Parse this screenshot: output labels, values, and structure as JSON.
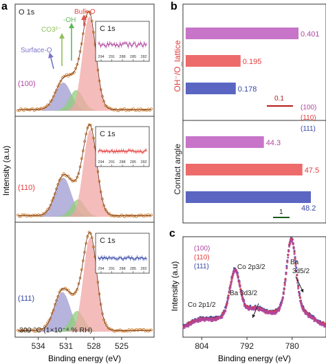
{
  "colors": {
    "c100": "#b0479f",
    "c110": "#e23b3b",
    "c111": "#3346a6",
    "purple_fill": "#9e9ad2",
    "green_fill": "#8fcf7a",
    "red_fill": "#f2a5a5",
    "bar100": "#c774c9",
    "bar110": "#ee6b6b",
    "bar111": "#5a66c2",
    "data_orange": "#c8792a",
    "scale_red": "#b81818",
    "scale_green": "#1a5a1a"
  },
  "panel_a": {
    "letter": "a",
    "ylabel": "Intensity (a.u)",
    "xlabel": "Binding energy (eV)",
    "xticks": [
      "534",
      "531",
      "528",
      "525"
    ],
    "o1s_label": "O 1s",
    "peak_labels": {
      "bulk": "Bulk-O",
      "oh": "-OH",
      "co3": "CO3²⁻",
      "surface": "Surface-O"
    },
    "facets": [
      "(100)",
      "(110)",
      "(111)"
    ],
    "condition": "300 °C (1×10⁻⁴ % RH)",
    "inset_title": "C 1s",
    "inset_xticks": [
      "294",
      "291",
      "288",
      "285",
      "282"
    ]
  },
  "panel_b": {
    "letter": "b",
    "ratio_label": "OH⁻/O_lattice",
    "contact_label": "Contact angle",
    "legend": [
      "(100)",
      "(110)",
      "(111)"
    ],
    "scale_ratio": "0.1",
    "scale_angle": "1"
  },
  "panel_c": {
    "letter": "c",
    "ylabel": "Intensity (a.u)",
    "xlabel": "Binding energy (eV)",
    "xticks": [
      "804",
      "792",
      "780"
    ],
    "legend": [
      "(100)",
      "(110)",
      "(111)"
    ],
    "peak_labels": {
      "co2p12": "Co 2p1/2",
      "ba3d32": "Ba 3d3/2",
      "co2p32": "Co 2p3/2",
      "ba": "Ba",
      "ba3d52": "3d5/2"
    }
  },
  "chart_data": [
    {
      "type": "line",
      "panel": "a",
      "xlabel": "Binding energy (eV)",
      "ylabel": "Intensity (a.u)",
      "xlim": [
        536.5,
        521.5
      ],
      "series": [
        {
          "name": "(100)",
          "peaks": [
            {
              "component": "Surface-O",
              "center": 531.3,
              "height": 0.3
            },
            {
              "component": "-OH / CO3²⁻",
              "center": 529.9,
              "height": 0.22
            },
            {
              "component": "Bulk-O",
              "center": 528.5,
              "height": 1.0
            }
          ]
        },
        {
          "name": "(110)",
          "peaks": [
            {
              "component": "Surface-O",
              "center": 531.3,
              "height": 0.45
            },
            {
              "component": "-OH / CO3²⁻",
              "center": 529.7,
              "height": 0.2
            },
            {
              "component": "Bulk-O",
              "center": 528.4,
              "height": 1.0
            }
          ]
        },
        {
          "name": "(111)",
          "peaks": [
            {
              "component": "Surface-O",
              "center": 531.4,
              "height": 0.42
            },
            {
              "component": "-OH / CO3²⁻",
              "center": 529.8,
              "height": 0.22
            },
            {
              "component": "Bulk-O",
              "center": 528.4,
              "height": 1.0
            }
          ]
        }
      ]
    },
    {
      "type": "bar",
      "panel": "b",
      "orientation": "horizontal",
      "groups": [
        {
          "name": "OH⁻/O_lattice",
          "categories": [
            "(100)",
            "(110)",
            "(111)"
          ],
          "values": [
            0.401,
            0.195,
            0.178
          ],
          "labels": [
            "0.401",
            "0.195",
            "0.178"
          ]
        },
        {
          "name": "Contact angle",
          "categories": [
            "(100)",
            "(110)",
            "(111)"
          ],
          "values": [
            44.3,
            47.5,
            48.2
          ],
          "labels": [
            "44.3",
            "47.5",
            "48.2"
          ]
        }
      ]
    },
    {
      "type": "line",
      "panel": "c",
      "xlabel": "Binding energy (eV)",
      "ylabel": "Intensity (a.u)",
      "xlim": [
        809,
        771
      ],
      "series": [
        {
          "name": "(100)",
          "peaks": [
            {
              "label": "Co 2p1/2",
              "center": 795.2
            },
            {
              "label": "Co 2p3/2",
              "center": 780.2
            }
          ]
        },
        {
          "name": "(110)",
          "peaks": [
            {
              "label": "Co 2p1/2",
              "center": 795.2
            },
            {
              "label": "Co 2p3/2",
              "center": 780.2
            }
          ]
        },
        {
          "name": "(111)",
          "peaks": [
            {
              "label": "Co 2p1/2",
              "center": 795.2
            },
            {
              "label": "Co 2p3/2",
              "center": 780.2
            }
          ]
        }
      ]
    }
  ]
}
